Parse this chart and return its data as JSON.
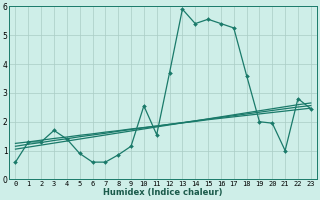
{
  "xlabel": "Humidex (Indice chaleur)",
  "x_values": [
    0,
    1,
    2,
    3,
    4,
    5,
    6,
    7,
    8,
    9,
    10,
    11,
    12,
    13,
    14,
    15,
    16,
    17,
    18,
    19,
    20,
    21,
    22,
    23
  ],
  "main_line": [
    0.6,
    1.3,
    1.3,
    1.7,
    1.4,
    0.9,
    0.6,
    0.6,
    0.85,
    1.15,
    2.55,
    1.55,
    3.7,
    5.9,
    5.4,
    5.55,
    5.4,
    5.25,
    3.6,
    2.0,
    1.95,
    1.0,
    2.8,
    2.45
  ],
  "trend_lines": [
    [
      1.05,
      1.12,
      1.19,
      1.26,
      1.33,
      1.4,
      1.47,
      1.54,
      1.61,
      1.68,
      1.75,
      1.82,
      1.89,
      1.96,
      2.03,
      2.1,
      2.17,
      2.24,
      2.31,
      2.38,
      2.45,
      2.52,
      2.59,
      2.65
    ],
    [
      1.15,
      1.22,
      1.28,
      1.35,
      1.41,
      1.48,
      1.54,
      1.6,
      1.67,
      1.73,
      1.79,
      1.85,
      1.91,
      1.97,
      2.03,
      2.09,
      2.15,
      2.21,
      2.27,
      2.33,
      2.39,
      2.45,
      2.51,
      2.56
    ],
    [
      1.25,
      1.3,
      1.36,
      1.42,
      1.47,
      1.53,
      1.58,
      1.64,
      1.69,
      1.75,
      1.8,
      1.85,
      1.91,
      1.96,
      2.01,
      2.07,
      2.12,
      2.17,
      2.22,
      2.27,
      2.32,
      2.37,
      2.42,
      2.47
    ]
  ],
  "line_color": "#1a7a6a",
  "bg_color": "#ceeee8",
  "grid_color": "#aaccc5",
  "ylim": [
    0,
    6
  ],
  "yticks": [
    0,
    1,
    2,
    3,
    4,
    5,
    6
  ],
  "xlim": [
    -0.5,
    23.5
  ],
  "xlabel_fontsize": 6.0,
  "tick_fontsize": 5.0
}
